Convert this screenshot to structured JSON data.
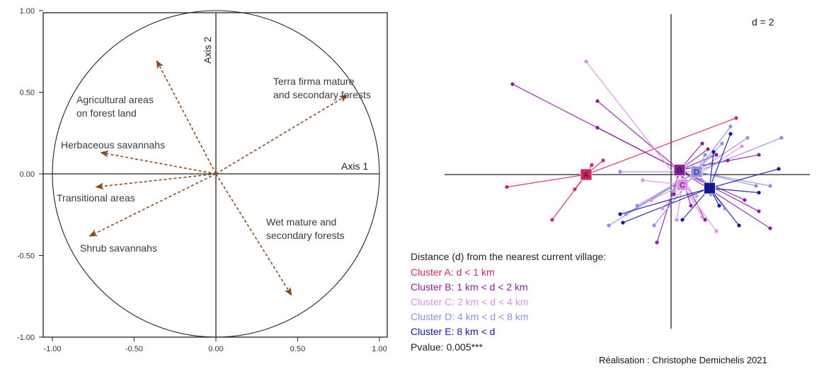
{
  "credit": "Réalisation : Christophe Demichelis 2021",
  "colors": {
    "arrow": "#8b4a22",
    "axis": "#222222",
    "cluster_A": "#d0245a",
    "cluster_B": "#8a1fa0",
    "cluster_C": "#e08fe6",
    "cluster_D": "#8e8ee8",
    "cluster_E": "#15189e"
  },
  "chart_data": [
    {
      "type": "scatter",
      "subtype": "correlation-circle",
      "xlabel": "Axis 1",
      "ylabel": "Axis 2",
      "xlim": [
        -1.0,
        1.0
      ],
      "ylim": [
        -1.0,
        1.0
      ],
      "xticks": [
        "-1.00",
        "-0.50",
        "0.00",
        "0.50",
        "1.00"
      ],
      "yticks": [
        "1.00",
        "0.50",
        "0.00",
        "-0.50",
        "-1.00"
      ],
      "grid": false,
      "vectors": [
        {
          "name": "Agricultural areas on forest land",
          "lines": [
            "Agricultural areas",
            "on forest land"
          ],
          "x": -0.36,
          "y": 0.69
        },
        {
          "name": "Terra firma mature and secondary forests",
          "lines": [
            "Terra firma mature",
            "and secondary forests"
          ],
          "x": 0.8,
          "y": 0.48
        },
        {
          "name": "Herbaceous savannahs",
          "lines": [
            "Herbaceous savannahs"
          ],
          "x": -0.7,
          "y": 0.13
        },
        {
          "name": "Transitional areas",
          "lines": [
            "Transitional areas"
          ],
          "x": -0.73,
          "y": -0.08
        },
        {
          "name": "Shrub savannahs",
          "lines": [
            "Shrub savannahs"
          ],
          "x": -0.77,
          "y": -0.38
        },
        {
          "name": "Wet mature and secondary forests",
          "lines": [
            "Wet mature and",
            "secondary forests"
          ],
          "x": 0.46,
          "y": -0.74
        }
      ]
    },
    {
      "type": "scatter",
      "subtype": "factorial-map-with-cluster-centroids",
      "scale_label": "d = 2",
      "grid": false,
      "legend_title": "Distance (d) from the nearest current village:",
      "legend_placement": "bottom-left",
      "pvalue": "Pvalue: 0.005***",
      "series": [
        {
          "name": "Cluster A: d < 1 km",
          "centroid_label": "A",
          "centroid": [
            -1.5,
            0.0
          ],
          "points": [
            [
              -2.9,
              -0.22
            ],
            [
              -1.4,
              0.17
            ],
            [
              -1.2,
              0.25
            ],
            [
              -2.1,
              -0.8
            ],
            [
              -1.7,
              -0.26
            ],
            [
              1.15,
              1.0
            ]
          ]
        },
        {
          "name": "Cluster B: 1 km < d < 2 km",
          "centroid_label": "B",
          "centroid": [
            0.15,
            0.08
          ],
          "points": [
            [
              -2.8,
              1.6
            ],
            [
              -1.3,
              1.3
            ],
            [
              -1.3,
              0.83
            ],
            [
              0.25,
              0.02
            ],
            [
              0.55,
              0.55
            ],
            [
              0.65,
              0.45
            ],
            [
              0.8,
              0.35
            ],
            [
              1.0,
              0.25
            ],
            [
              1.55,
              0.35
            ],
            [
              1.3,
              -0.45
            ],
            [
              1.55,
              -0.65
            ],
            [
              1.75,
              -0.95
            ],
            [
              0.05,
              -0.35
            ],
            [
              0.35,
              -0.55
            ],
            [
              -0.25,
              -1.2
            ],
            [
              0.6,
              -0.8
            ]
          ]
        },
        {
          "name": "Cluster C: 2 km < d < 4 km",
          "centroid_label": "C",
          "centroid": [
            0.2,
            -0.18
          ],
          "points": [
            [
              -1.5,
              2.0
            ],
            [
              -0.5,
              -0.1
            ],
            [
              -0.35,
              -0.45
            ],
            [
              -0.15,
              -0.6
            ],
            [
              0.3,
              -0.25
            ],
            [
              0.45,
              -0.38
            ],
            [
              0.8,
              -1.0
            ],
            [
              1.25,
              0.5
            ],
            [
              0.1,
              -0.8
            ],
            [
              0.55,
              -0.75
            ]
          ]
        },
        {
          "name": "Cluster D: 4 km < d < 8 km",
          "centroid_label": "D",
          "centroid": [
            0.45,
            0.05
          ],
          "points": [
            [
              -0.9,
              0.05
            ],
            [
              -1.1,
              -0.9
            ],
            [
              -0.8,
              -0.7
            ],
            [
              -0.6,
              -0.55
            ],
            [
              0.6,
              0.35
            ],
            [
              0.9,
              0.55
            ],
            [
              1.05,
              0.85
            ],
            [
              1.35,
              0.65
            ],
            [
              1.5,
              -0.2
            ],
            [
              1.75,
              -0.2
            ],
            [
              1.95,
              0.65
            ],
            [
              0.95,
              -0.6
            ],
            [
              0.7,
              -0.35
            ],
            [
              -0.3,
              -0.9
            ]
          ]
        },
        {
          "name": "Cluster E: 8 km < d",
          "centroid_label": "E",
          "centroid": [
            0.68,
            -0.24
          ],
          "points": [
            [
              1.05,
              0.72
            ],
            [
              0.75,
              0.4
            ],
            [
              1.55,
              -0.32
            ],
            [
              1.9,
              0.1
            ],
            [
              1.2,
              -0.9
            ],
            [
              0.85,
              -0.55
            ],
            [
              0.2,
              -0.8
            ],
            [
              -0.9,
              -0.7
            ],
            [
              -0.85,
              -0.85
            ]
          ]
        }
      ]
    }
  ]
}
